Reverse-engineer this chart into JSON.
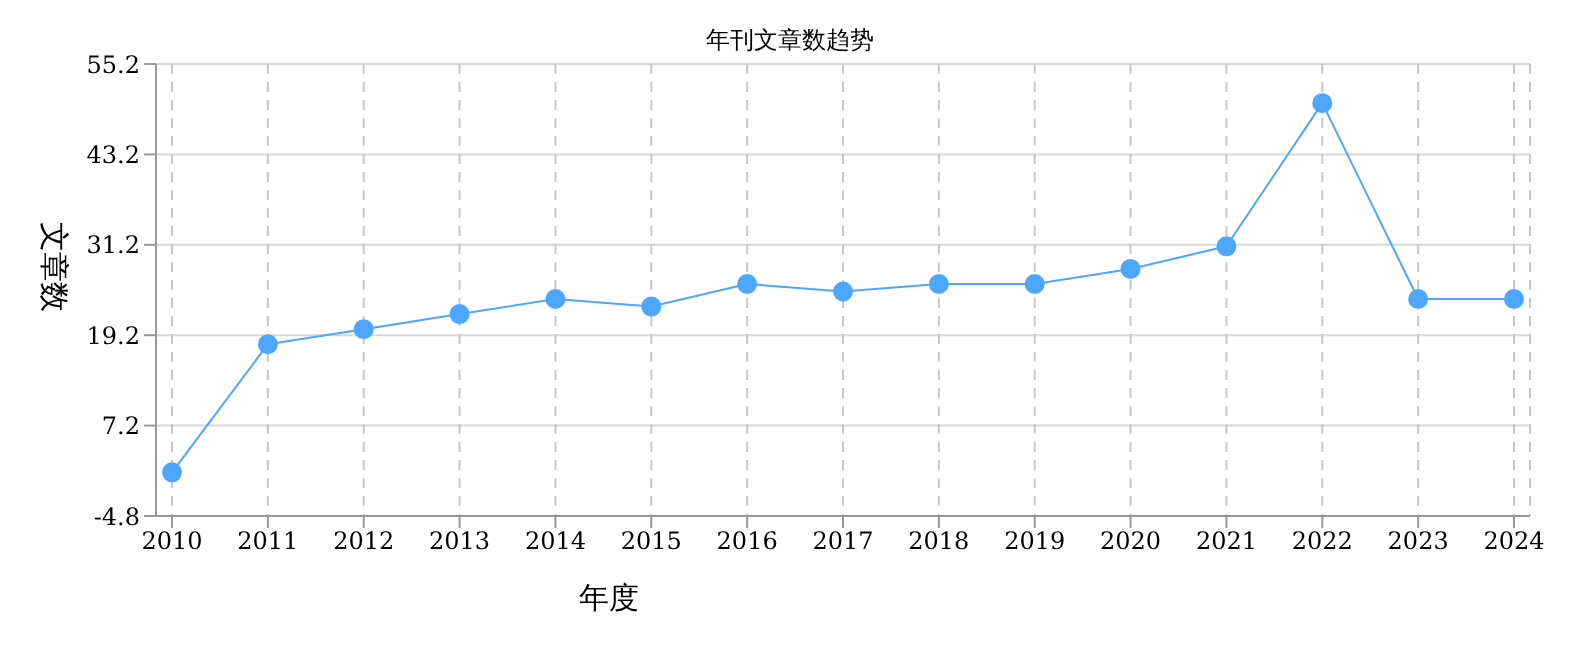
{
  "chart_data": {
    "type": "line",
    "title": "年刊文章数趋势",
    "xlabel": "年度",
    "ylabel": "文章数",
    "categories": [
      "2010",
      "2011",
      "2012",
      "2013",
      "2014",
      "2015",
      "2016",
      "2017",
      "2018",
      "2019",
      "2020",
      "2021",
      "2022",
      "2023",
      "2024"
    ],
    "series": [
      {
        "color": "#4da6ff",
        "values": [
          1,
          18,
          20,
          22,
          24,
          23,
          26,
          25,
          26,
          26,
          28,
          31,
          50,
          24,
          24
        ]
      }
    ],
    "ylim": [
      -4.8,
      55.2
    ],
    "yticks": [
      -4.8,
      7.2,
      19.2,
      31.2,
      43.2,
      55.2
    ],
    "grid": true,
    "marker": "circle",
    "line_style": "solid",
    "legend": false
  }
}
